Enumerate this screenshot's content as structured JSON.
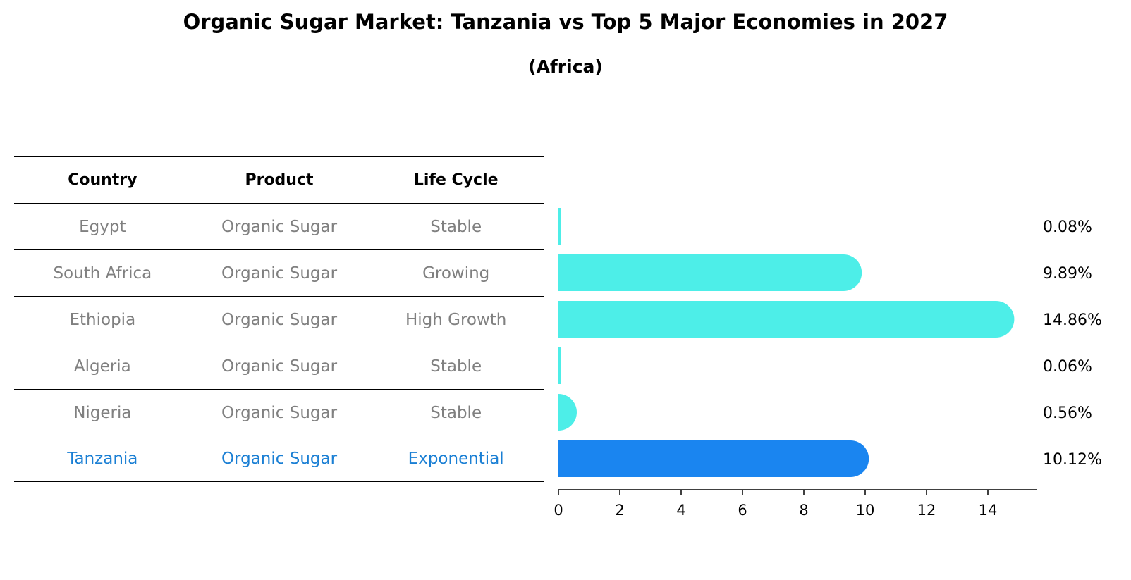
{
  "title": "Organic Sugar Market: Tanzania vs Top 5 Major Economies in 2027",
  "subtitle": "(Africa)",
  "table": {
    "headers": [
      "Country",
      "Product",
      "Life Cycle"
    ],
    "rows": [
      {
        "country": "Egypt",
        "product": "Organic Sugar",
        "life_cycle": "Stable"
      },
      {
        "country": "South Africa",
        "product": "Organic Sugar",
        "life_cycle": "Growing"
      },
      {
        "country": "Ethiopia",
        "product": "Organic Sugar",
        "life_cycle": "High Growth"
      },
      {
        "country": "Algeria",
        "product": "Organic Sugar",
        "life_cycle": "Stable"
      },
      {
        "country": "Nigeria",
        "product": "Organic Sugar",
        "life_cycle": "Stable"
      },
      {
        "country": "Tanzania",
        "product": "Organic Sugar",
        "life_cycle": "Exponential"
      }
    ]
  },
  "colors": {
    "bar": "#4deee8",
    "highlight_bar": "#1a85f0",
    "highlight_text": "#1a7fd4",
    "muted_text": "#808080"
  },
  "chart_data": {
    "type": "bar",
    "orientation": "horizontal",
    "categories": [
      "Egypt",
      "South Africa",
      "Ethiopia",
      "Algeria",
      "Nigeria",
      "Tanzania"
    ],
    "values": [
      0.08,
      9.89,
      14.86,
      0.06,
      0.56,
      10.12
    ],
    "value_labels": [
      "0.08%",
      "9.89%",
      "14.86%",
      "0.06%",
      "0.56%",
      "10.12%"
    ],
    "highlight": "Tanzania",
    "xlim": [
      0,
      15.6
    ],
    "xticks": [
      0,
      2,
      4,
      6,
      8,
      10,
      12,
      14
    ],
    "xtick_labels": [
      "0",
      "2",
      "4",
      "6",
      "8",
      "10",
      "12",
      "14"
    ],
    "xlabel": "",
    "ylabel": "",
    "grid": false,
    "legend": "none"
  }
}
